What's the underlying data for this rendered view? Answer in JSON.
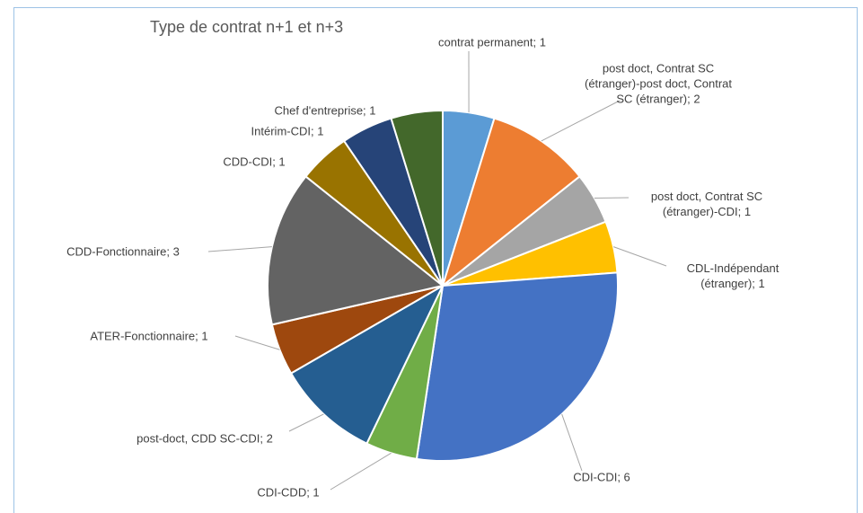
{
  "chart_data": {
    "type": "pie",
    "title": "Type de contrat n+1 et n+3",
    "values": [
      1,
      2,
      1,
      1,
      6,
      1,
      2,
      1,
      3,
      1,
      1,
      1
    ],
    "value_labels": [
      "contrat permanent; 1",
      "post doct, Contrat SC (étranger)-post doct, Contrat SC (étranger); 2",
      "post doct, Contrat SC (étranger)-CDI; 1",
      "CDL-Indépendant (étranger); 1",
      "CDI-CDI; 6",
      "CDI-CDD; 1",
      "post-doct, CDD SC-CDI; 2",
      "ATER-Fonctionnaire; 1",
      "CDD-Fonctionnaire; 3",
      "CDD-CDI; 1",
      "Intérim-CDI; 1",
      "Chef d'entreprise; 1"
    ],
    "colors": [
      "#5b9bd5",
      "#ed7d31",
      "#a5a5a5",
      "#ffc000",
      "#4472c4",
      "#70ad47",
      "#255e91",
      "#9e480e",
      "#636363",
      "#997300",
      "#264478",
      "#43682b"
    ]
  }
}
